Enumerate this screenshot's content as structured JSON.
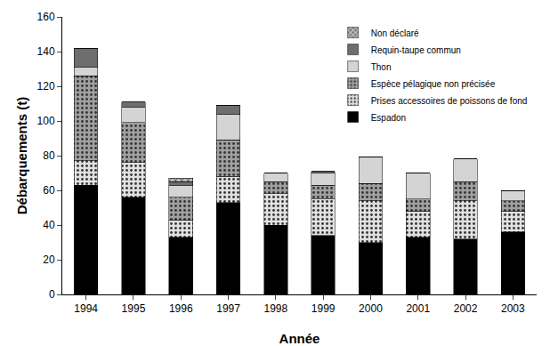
{
  "chart_data": {
    "type": "bar",
    "stacked": true,
    "x_label": "Année",
    "y_label": "Débarquements (t)",
    "categories": [
      "1994",
      "1995",
      "1996",
      "1997",
      "1998",
      "1999",
      "2000",
      "2001",
      "2002",
      "2003"
    ],
    "series": [
      {
        "name": "Espadon",
        "color": "#000000",
        "marker": "solid",
        "values": [
          63,
          56,
          33,
          53,
          40,
          34,
          30,
          33,
          32,
          36
        ]
      },
      {
        "name": "Prises accessoires de poissons de fond",
        "color": "#e0e0e0",
        "marker": "dots",
        "values": [
          14,
          20,
          10,
          15,
          18,
          21,
          24,
          15,
          22,
          12
        ]
      },
      {
        "name": "Espèce pélagique non précisée",
        "color": "#a0a0a0",
        "marker": "dots",
        "values": [
          49,
          23,
          13,
          21,
          7,
          8,
          10,
          7,
          11,
          6
        ]
      },
      {
        "name": "Thon",
        "color": "#d4d4d4",
        "marker": "solid",
        "values": [
          5,
          9,
          7,
          15,
          5,
          7,
          15,
          15,
          13,
          6
        ]
      },
      {
        "name": "Requin-taupe commun",
        "color": "#6e6e6e",
        "marker": "solid",
        "values": [
          11,
          3,
          2,
          5,
          0,
          1,
          0,
          0,
          0,
          0
        ]
      },
      {
        "name": "Non déclaré",
        "color": "#b8b8b8",
        "marker": "crosshatch",
        "values": [
          0,
          0,
          2,
          0,
          0,
          0,
          0,
          0,
          0,
          0
        ]
      }
    ],
    "ylim": [
      0,
      160
    ],
    "yticks": [
      0,
      20,
      40,
      60,
      80,
      100,
      120,
      140,
      160
    ],
    "grid": false,
    "legend": "top-right"
  }
}
